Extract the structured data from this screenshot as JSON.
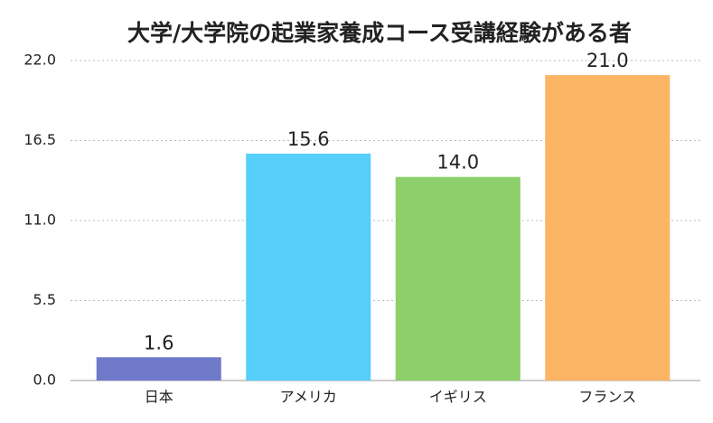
{
  "chart_data": {
    "type": "bar",
    "title": "大学/大学院の起業家養成コース受講経験がある者",
    "categories": [
      "日本",
      "アメリカ",
      "イギリス",
      "フランス"
    ],
    "values": [
      1.6,
      15.6,
      14.0,
      21.0
    ],
    "value_labels": [
      "1.6",
      "15.6",
      "14.0",
      "21.0"
    ],
    "colors": [
      "#6f7acb",
      "#56cffb",
      "#8dcf6a",
      "#fbb565"
    ],
    "ylim": [
      0,
      22
    ],
    "yticks": [
      {
        "value": 0,
        "label": "0.0"
      },
      {
        "value": 5.5,
        "label": "5.5"
      },
      {
        "value": 11,
        "label": "11.0"
      },
      {
        "value": 16.5,
        "label": "16.5"
      },
      {
        "value": 22,
        "label": "22.0"
      }
    ],
    "grid": true
  }
}
